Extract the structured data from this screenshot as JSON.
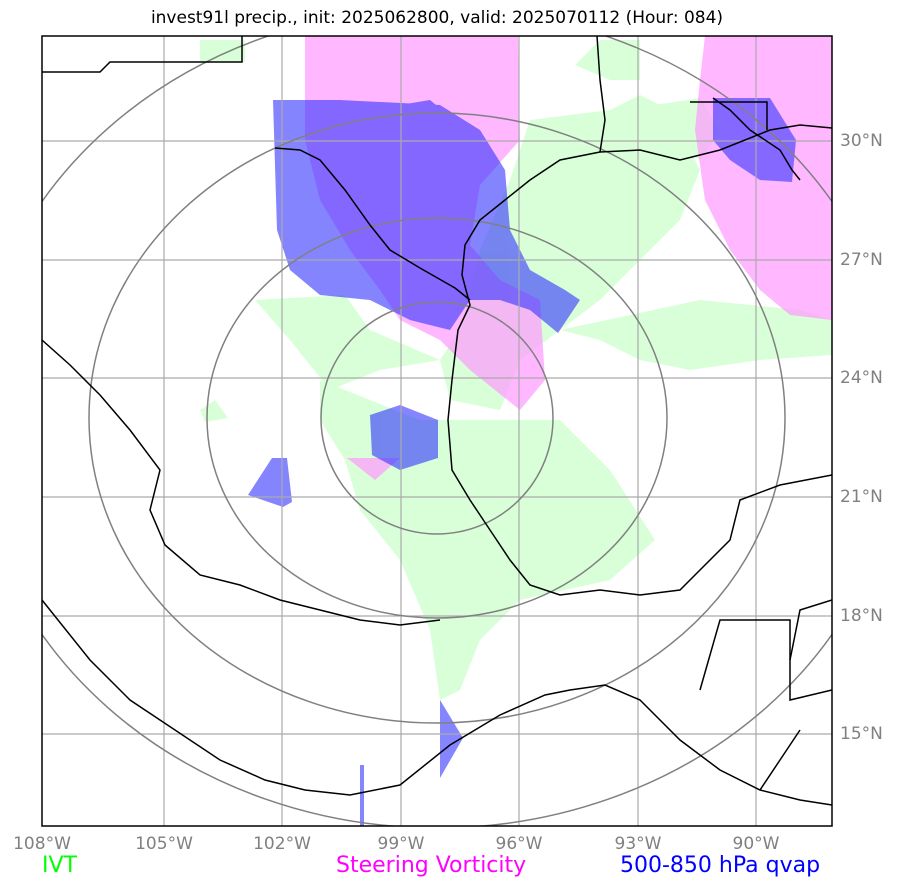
{
  "title": "invest91l precip., init: 2025062800, valid: 2025070112 (Hour: 084)",
  "lon_labels": [
    "108°W",
    "105°W",
    "102°W",
    "99°W",
    "96°W",
    "93°W",
    "90°W"
  ],
  "lat_labels": [
    "30°N",
    "27°N",
    "24°N",
    "21°N",
    "18°N",
    "15°N"
  ],
  "legend": {
    "ivt": {
      "label": "IVT",
      "color": "#00ff00"
    },
    "vorticity": {
      "label": "Steering Vorticity",
      "color": "#ff00ff"
    },
    "qvap": {
      "label": "500-850 hPa qvap",
      "color": "#0000ff"
    }
  },
  "colors": {
    "ivt_fill": "#ccffcc",
    "vorticity_fill": "#ff99ff",
    "qvap_fill": "#3333ff",
    "coast": "#000000",
    "grid": "#aaaaaa",
    "range_rings": "#808080"
  }
}
